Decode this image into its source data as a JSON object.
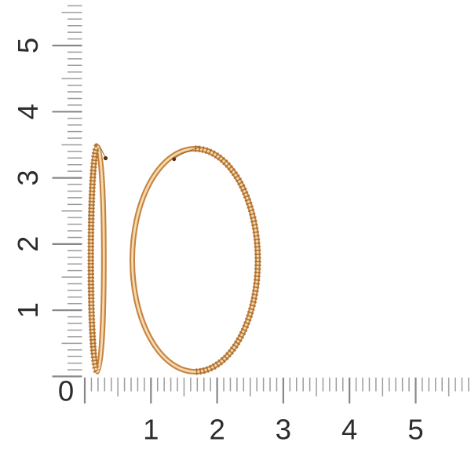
{
  "page": {
    "background_color": "#ffffff",
    "content_type": "jewelry product photo with measurement rulers (centimeters)"
  },
  "ruler": {
    "origin_label": "0",
    "vertical_labels": [
      "1",
      "2",
      "3",
      "4",
      "5"
    ],
    "horizontal_labels": [
      "1",
      "2",
      "3",
      "4",
      "5"
    ],
    "tick_color": "#9c9c9c",
    "major_tick_color": "#878787",
    "label_color": "#2c2c2c"
  },
  "earrings": {
    "item": "pair of gold hoop earrings",
    "left_view": "side (edge-on) hoop with diamond-cut ridged outer edge",
    "right_view": "front-facing hoop, diamond-cut ridges on right half, smooth polished left half",
    "approx_diameter_cm": 3.5,
    "colors": {
      "tube": "#c68342",
      "highlight": "#f4dcae",
      "ridge": "#a5672a",
      "seam": "#8f5a24",
      "clasp_hole": "#56300f"
    }
  }
}
